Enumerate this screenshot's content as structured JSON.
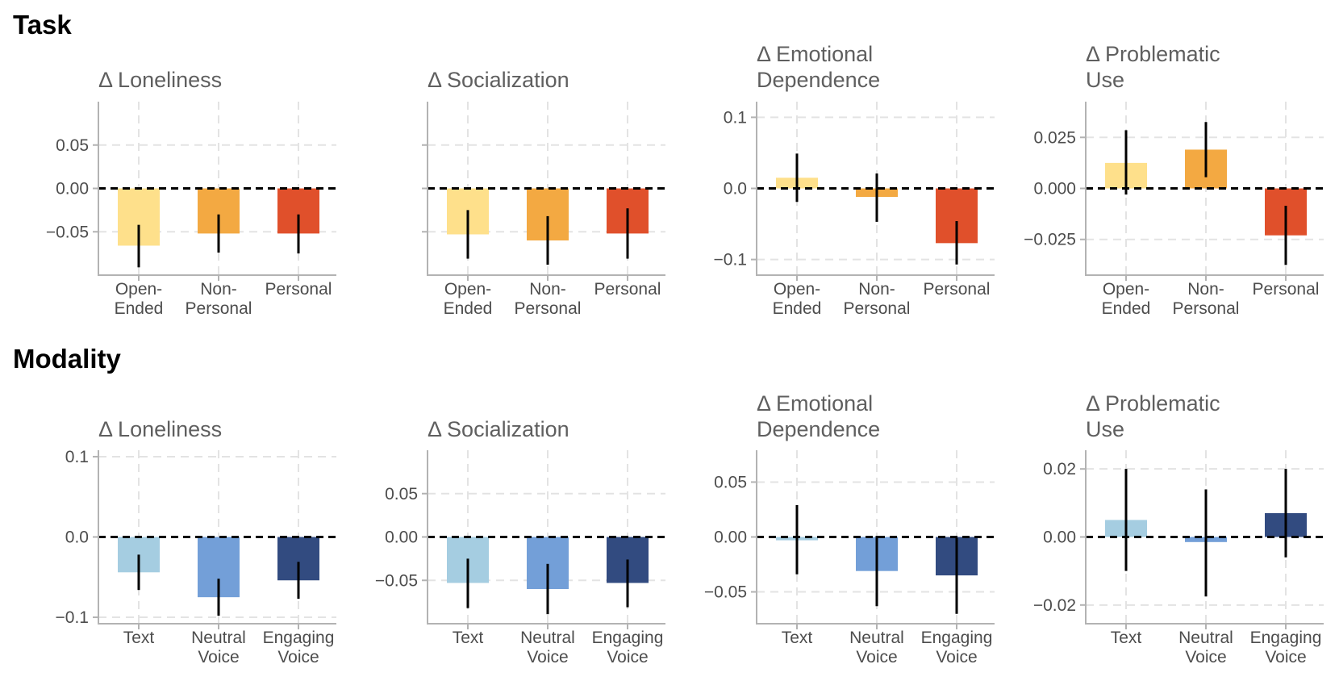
{
  "sections": [
    {
      "title": "Task"
    },
    {
      "title": "Modality"
    }
  ],
  "chart_data": [
    {
      "section": "Task",
      "type": "bar",
      "title": [
        "Δ Loneliness"
      ],
      "categories": [
        [
          "Open-",
          "Ended"
        ],
        [
          "Non-",
          "Personal"
        ],
        [
          "Personal"
        ]
      ],
      "values": [
        -0.066,
        -0.052,
        -0.052
      ],
      "ci_low": [
        -0.091,
        -0.074,
        -0.075
      ],
      "ci_high": [
        -0.042,
        -0.03,
        -0.03
      ],
      "colors": [
        "#FEE08B",
        "#F3A942",
        "#E0502B"
      ],
      "yticks": [
        0.05,
        0.0,
        -0.05
      ],
      "ytick_labels": [
        "0.05",
        "0.00",
        "−0.05"
      ],
      "ylim": [
        -0.1,
        0.1
      ]
    },
    {
      "section": "Task",
      "type": "bar",
      "title": [
        "Δ Socialization"
      ],
      "categories": [
        [
          "Open-",
          "Ended"
        ],
        [
          "Non-",
          "Personal"
        ],
        [
          "Personal"
        ]
      ],
      "values": [
        -0.053,
        -0.06,
        -0.052
      ],
      "ci_low": [
        -0.081,
        -0.088,
        -0.081
      ],
      "ci_high": [
        -0.025,
        -0.032,
        -0.023
      ],
      "colors": [
        "#FEE08B",
        "#F3A942",
        "#E0502B"
      ],
      "yticks": [
        0.05,
        0.0,
        -0.05
      ],
      "ytick_labels": [
        "",
        "",
        ""
      ],
      "ylim": [
        -0.1,
        0.1
      ]
    },
    {
      "section": "Task",
      "type": "bar",
      "title": [
        "Δ Emotional",
        "Dependence"
      ],
      "categories": [
        [
          "Open-",
          "Ended"
        ],
        [
          "Non-",
          "Personal"
        ],
        [
          "Personal"
        ]
      ],
      "values": [
        0.015,
        -0.012,
        -0.077
      ],
      "ci_low": [
        -0.019,
        -0.047,
        -0.107
      ],
      "ci_high": [
        0.049,
        0.021,
        -0.046
      ],
      "colors": [
        "#FEE08B",
        "#F3A942",
        "#E0502B"
      ],
      "yticks": [
        0.1,
        0.0,
        -0.1
      ],
      "ytick_labels": [
        "0.1",
        "0.0",
        "−0.1"
      ],
      "ylim": [
        -0.122,
        0.122
      ]
    },
    {
      "section": "Task",
      "type": "bar",
      "title": [
        "Δ Problematic",
        "Use"
      ],
      "categories": [
        [
          "Open-",
          "Ended"
        ],
        [
          "Non-",
          "Personal"
        ],
        [
          "Personal"
        ]
      ],
      "values": [
        0.0125,
        0.019,
        -0.023
      ],
      "ci_low": [
        -0.003,
        0.0055,
        -0.0375
      ],
      "ci_high": [
        0.0285,
        0.0325,
        -0.0085
      ],
      "colors": [
        "#FEE08B",
        "#F3A942",
        "#E0502B"
      ],
      "yticks": [
        0.025,
        0.0,
        -0.025
      ],
      "ytick_labels": [
        "0.025",
        "0.000",
        "−0.025"
      ],
      "ylim": [
        -0.0425,
        0.0425
      ]
    },
    {
      "section": "Modality",
      "type": "bar",
      "title": [
        "Δ Loneliness"
      ],
      "categories": [
        [
          "Text"
        ],
        [
          "Neutral",
          "Voice"
        ],
        [
          "Engaging",
          "Voice"
        ]
      ],
      "values": [
        -0.044,
        -0.075,
        -0.054
      ],
      "ci_low": [
        -0.066,
        -0.098,
        -0.077
      ],
      "ci_high": [
        -0.022,
        -0.052,
        -0.031
      ],
      "colors": [
        "#A5CDE1",
        "#739FD8",
        "#324B80"
      ],
      "yticks": [
        0.1,
        0.0,
        -0.1
      ],
      "ytick_labels": [
        "0.1",
        "0.0",
        "−0.1"
      ],
      "ylim": [
        -0.108,
        0.108
      ]
    },
    {
      "section": "Modality",
      "type": "bar",
      "title": [
        "Δ Socialization"
      ],
      "categories": [
        [
          "Text"
        ],
        [
          "Neutral",
          "Voice"
        ],
        [
          "Engaging",
          "Voice"
        ]
      ],
      "values": [
        -0.053,
        -0.06,
        -0.053
      ],
      "ci_low": [
        -0.082,
        -0.089,
        -0.081
      ],
      "ci_high": [
        -0.025,
        -0.031,
        -0.026
      ],
      "colors": [
        "#A5CDE1",
        "#739FD8",
        "#324B80"
      ],
      "yticks": [
        0.05,
        0.0,
        -0.05
      ],
      "ytick_labels": [
        "0.05",
        "0.00",
        "−0.05"
      ],
      "ylim": [
        -0.1,
        0.1
      ]
    },
    {
      "section": "Modality",
      "type": "bar",
      "title": [
        "Δ Emotional",
        "Dependence"
      ],
      "categories": [
        [
          "Text"
        ],
        [
          "Neutral",
          "Voice"
        ],
        [
          "Engaging",
          "Voice"
        ]
      ],
      "values": [
        -0.003,
        -0.031,
        -0.035
      ],
      "ci_low": [
        -0.034,
        -0.063,
        -0.07
      ],
      "ci_high": [
        0.029,
        0.001,
        -0.001
      ],
      "colors": [
        "#A5CDE1",
        "#739FD8",
        "#324B80"
      ],
      "yticks": [
        0.05,
        0.0,
        -0.05
      ],
      "ytick_labels": [
        "0.05",
        "0.00",
        "−0.05"
      ],
      "ylim": [
        -0.079,
        0.079
      ]
    },
    {
      "section": "Modality",
      "type": "bar",
      "title": [
        "Δ Problematic",
        "Use"
      ],
      "categories": [
        [
          "Text"
        ],
        [
          "Neutral",
          "Voice"
        ],
        [
          "Engaging",
          "Voice"
        ]
      ],
      "values": [
        0.005,
        -0.0015,
        0.007
      ],
      "ci_low": [
        -0.01,
        -0.0175,
        -0.006
      ],
      "ci_high": [
        0.02,
        0.014,
        0.02
      ],
      "colors": [
        "#A5CDE1",
        "#739FD8",
        "#324B80"
      ],
      "yticks": [
        0.02,
        0.0,
        -0.02
      ],
      "ytick_labels": [
        "0.02",
        "0.00",
        "−0.02"
      ],
      "ylim": [
        -0.0255,
        0.0255
      ]
    }
  ]
}
